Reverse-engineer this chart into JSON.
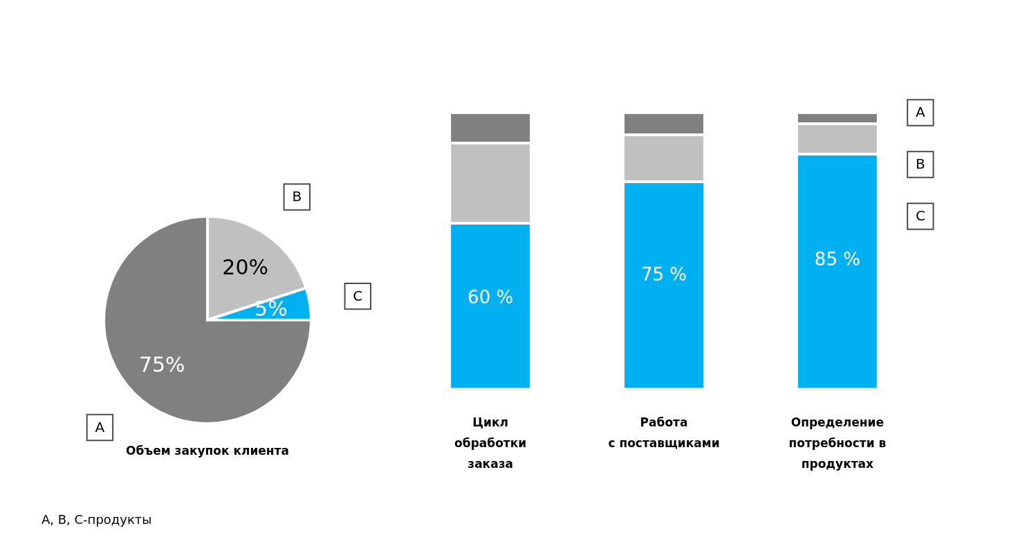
{
  "chart_data": [
    {
      "type": "pie",
      "title": "Объем закупок клиента",
      "categories": [
        "A",
        "B",
        "C"
      ],
      "values": [
        75,
        20,
        5
      ],
      "colors": [
        "#808080",
        "#c0c0c0",
        "#00b0f0"
      ],
      "value_labels": [
        "75%",
        "20%",
        "5%"
      ],
      "annotations": [
        "A, B, C-продукты"
      ]
    },
    {
      "type": "bar",
      "stacked": true,
      "categories": [
        "Цикл\nобработки\nзаказа",
        "Работа\nс поставщиками",
        "Определение\nпотребности в\nпродуктах"
      ],
      "series": [
        {
          "name": "C",
          "color": "#00b0f0",
          "values": [
            60,
            75,
            85
          ],
          "value_labels": [
            "60 %",
            "75 %",
            "85 %"
          ]
        },
        {
          "name": "B",
          "color": "#c0c0c0",
          "values": [
            29,
            17,
            11
          ]
        },
        {
          "name": "A",
          "color": "#808080",
          "values": [
            11,
            8,
            4
          ]
        }
      ]
    }
  ]
}
